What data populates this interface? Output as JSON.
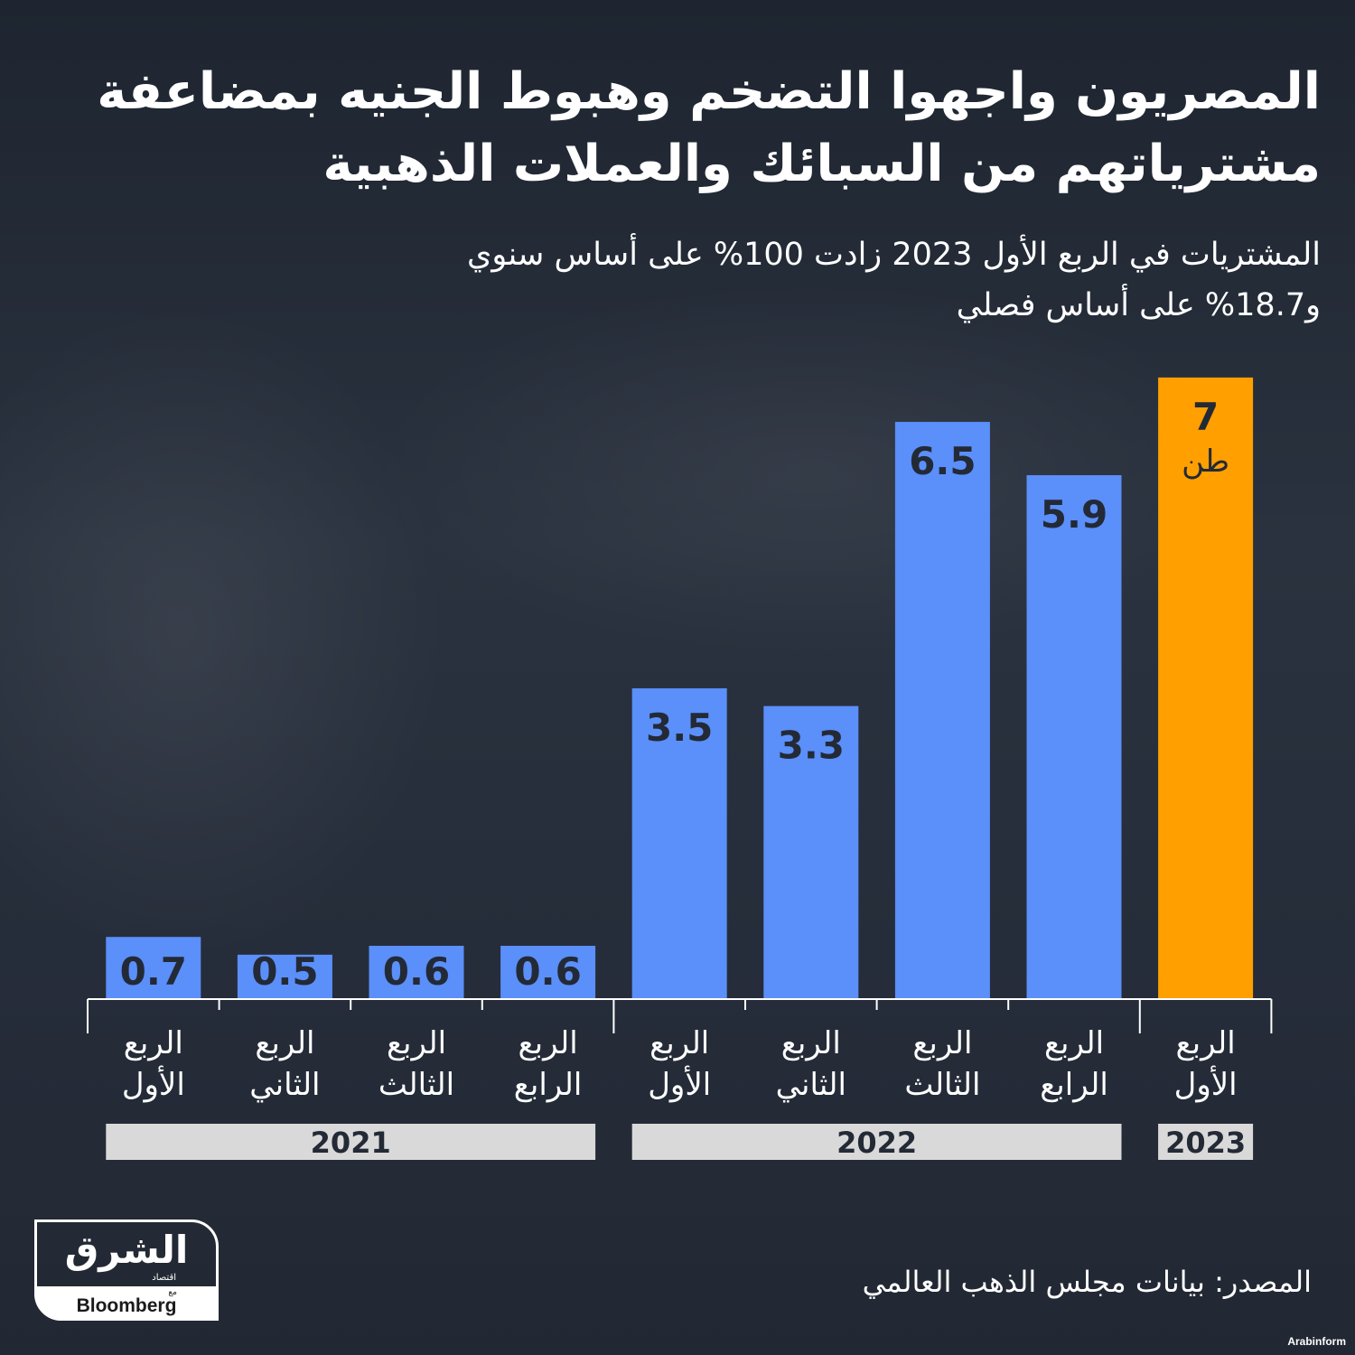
{
  "title_lines": [
    "المصريون واجهوا التضخم وهبوط الجنيه بمضاعفة",
    "مشترياتهم من السبائك والعملات الذهبية"
  ],
  "subtitle_lines": [
    "المشتريات في الربع الأول 2023 زادت 100% على أساس سنوي",
    "و18.7% على أساس فصلي"
  ],
  "source": "المصدر: بيانات مجلس الذهب العالمي",
  "logo": {
    "arabic": "الشرق",
    "arabic_small": "اقتصاد",
    "with": "مع",
    "english": "Bloomberg"
  },
  "watermark": "Arabinform",
  "colors": {
    "bar": "#5b8ff9",
    "highlight": "#ff9f00",
    "year_band": "#d9d9d9",
    "label_text": "#232a36",
    "background": "#232a36"
  },
  "chart_data": {
    "type": "bar",
    "categories": [
      [
        "الربع",
        "الأول"
      ],
      [
        "الربع",
        "الثاني"
      ],
      [
        "الربع",
        "الثالث"
      ],
      [
        "الربع",
        "الرابع"
      ],
      [
        "الربع",
        "الأول"
      ],
      [
        "الربع",
        "الثاني"
      ],
      [
        "الربع",
        "الثالث"
      ],
      [
        "الربع",
        "الرابع"
      ],
      [
        "الربع",
        "الأول"
      ]
    ],
    "values": [
      0.7,
      0.5,
      0.6,
      0.6,
      3.5,
      3.3,
      6.5,
      5.9,
      7
    ],
    "value_labels": [
      "0.7",
      "0.5",
      "0.6",
      "0.6",
      "3.5",
      "3.3",
      "6.5",
      "5.9",
      "7"
    ],
    "unit": "طن",
    "highlight_index": 8,
    "year_groups": [
      {
        "label": "2021",
        "start": 0,
        "end": 3
      },
      {
        "label": "2022",
        "start": 4,
        "end": 7
      },
      {
        "label": "2023",
        "start": 8,
        "end": 8
      }
    ],
    "ylim": [
      0,
      7
    ],
    "grid": false,
    "title": "",
    "xlabel": "",
    "ylabel": ""
  }
}
